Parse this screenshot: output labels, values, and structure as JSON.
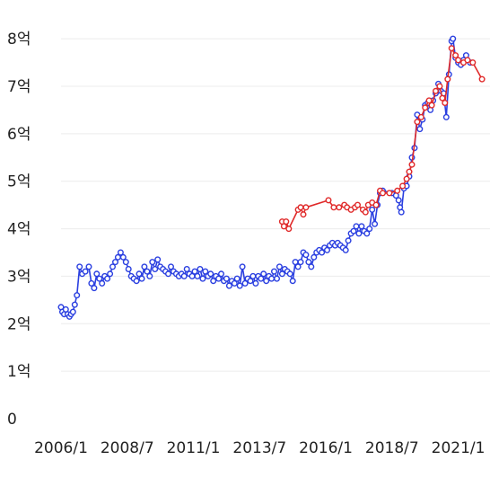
{
  "chart_data": {
    "type": "line",
    "y_ticks": [
      {
        "value": 0,
        "label": "0"
      },
      {
        "value": 1,
        "label": "1억"
      },
      {
        "value": 2,
        "label": "2억"
      },
      {
        "value": 3,
        "label": "3억"
      },
      {
        "value": 4,
        "label": "4억"
      },
      {
        "value": 5,
        "label": "5억"
      },
      {
        "value": 6,
        "label": "6억"
      },
      {
        "value": 7,
        "label": "7억"
      },
      {
        "value": 8,
        "label": "8억"
      }
    ],
    "x_ticks": [
      {
        "value": 2006.0,
        "label": "2006/1"
      },
      {
        "value": 2008.5,
        "label": "2008/7"
      },
      {
        "value": 2011.0,
        "label": "2011/1"
      },
      {
        "value": 2013.5,
        "label": "2013/7"
      },
      {
        "value": 2016.0,
        "label": "2016/1"
      },
      {
        "value": 2018.5,
        "label": "2018/7"
      },
      {
        "value": 2021.0,
        "label": "2021/1"
      }
    ],
    "xlim": [
      2006.0,
      2022.2
    ],
    "ylim": [
      0,
      8.4
    ],
    "grid": "horizontal",
    "series": [
      {
        "color": "#2a3fe0",
        "points": [
          [
            2006.0,
            2.35
          ],
          [
            2006.05,
            2.25
          ],
          [
            2006.12,
            2.2
          ],
          [
            2006.18,
            2.3
          ],
          [
            2006.25,
            2.2
          ],
          [
            2006.32,
            2.15
          ],
          [
            2006.38,
            2.2
          ],
          [
            2006.45,
            2.25
          ],
          [
            2006.52,
            2.4
          ],
          [
            2006.6,
            2.6
          ],
          [
            2006.7,
            3.2
          ],
          [
            2006.8,
            3.05
          ],
          [
            2006.92,
            3.1
          ],
          [
            2007.05,
            3.2
          ],
          [
            2007.15,
            2.85
          ],
          [
            2007.25,
            2.75
          ],
          [
            2007.35,
            3.05
          ],
          [
            2007.45,
            2.95
          ],
          [
            2007.55,
            2.85
          ],
          [
            2007.65,
            3.0
          ],
          [
            2007.75,
            2.95
          ],
          [
            2007.85,
            3.05
          ],
          [
            2007.95,
            3.2
          ],
          [
            2008.05,
            3.3
          ],
          [
            2008.15,
            3.4
          ],
          [
            2008.25,
            3.5
          ],
          [
            2008.35,
            3.4
          ],
          [
            2008.45,
            3.3
          ],
          [
            2008.55,
            3.15
          ],
          [
            2008.65,
            3.0
          ],
          [
            2008.75,
            2.95
          ],
          [
            2008.85,
            2.9
          ],
          [
            2008.95,
            3.05
          ],
          [
            2009.05,
            2.95
          ],
          [
            2009.15,
            3.2
          ],
          [
            2009.25,
            3.1
          ],
          [
            2009.35,
            3.0
          ],
          [
            2009.45,
            3.3
          ],
          [
            2009.55,
            3.15
          ],
          [
            2009.65,
            3.35
          ],
          [
            2009.75,
            3.2
          ],
          [
            2009.85,
            3.15
          ],
          [
            2009.95,
            3.1
          ],
          [
            2010.05,
            3.05
          ],
          [
            2010.15,
            3.2
          ],
          [
            2010.25,
            3.1
          ],
          [
            2010.35,
            3.05
          ],
          [
            2010.45,
            3.0
          ],
          [
            2010.55,
            3.05
          ],
          [
            2010.65,
            3.0
          ],
          [
            2010.75,
            3.15
          ],
          [
            2010.85,
            3.05
          ],
          [
            2010.95,
            3.0
          ],
          [
            2011.05,
            3.1
          ],
          [
            2011.15,
            3.0
          ],
          [
            2011.25,
            3.15
          ],
          [
            2011.35,
            2.95
          ],
          [
            2011.45,
            3.1
          ],
          [
            2011.55,
            3.0
          ],
          [
            2011.65,
            3.05
          ],
          [
            2011.75,
            2.9
          ],
          [
            2011.85,
            3.0
          ],
          [
            2011.95,
            2.95
          ],
          [
            2012.05,
            3.05
          ],
          [
            2012.15,
            2.9
          ],
          [
            2012.25,
            2.95
          ],
          [
            2012.35,
            2.8
          ],
          [
            2012.45,
            2.9
          ],
          [
            2012.55,
            2.85
          ],
          [
            2012.65,
            2.95
          ],
          [
            2012.75,
            2.8
          ],
          [
            2012.85,
            3.2
          ],
          [
            2012.95,
            2.85
          ],
          [
            2013.05,
            2.95
          ],
          [
            2013.15,
            2.9
          ],
          [
            2013.25,
            3.0
          ],
          [
            2013.35,
            2.85
          ],
          [
            2013.45,
            3.0
          ],
          [
            2013.55,
            2.95
          ],
          [
            2013.65,
            3.05
          ],
          [
            2013.75,
            2.9
          ],
          [
            2013.85,
            3.0
          ],
          [
            2013.95,
            2.95
          ],
          [
            2014.05,
            3.1
          ],
          [
            2014.15,
            2.95
          ],
          [
            2014.25,
            3.2
          ],
          [
            2014.35,
            3.05
          ],
          [
            2014.45,
            3.15
          ],
          [
            2014.55,
            3.1
          ],
          [
            2014.65,
            3.05
          ],
          [
            2014.75,
            2.9
          ],
          [
            2014.85,
            3.3
          ],
          [
            2014.95,
            3.2
          ],
          [
            2015.05,
            3.3
          ],
          [
            2015.15,
            3.5
          ],
          [
            2015.25,
            3.45
          ],
          [
            2015.35,
            3.3
          ],
          [
            2015.45,
            3.2
          ],
          [
            2015.55,
            3.4
          ],
          [
            2015.65,
            3.5
          ],
          [
            2015.75,
            3.55
          ],
          [
            2015.85,
            3.5
          ],
          [
            2015.95,
            3.6
          ],
          [
            2016.05,
            3.55
          ],
          [
            2016.15,
            3.65
          ],
          [
            2016.25,
            3.7
          ],
          [
            2016.35,
            3.65
          ],
          [
            2016.45,
            3.7
          ],
          [
            2016.55,
            3.65
          ],
          [
            2016.65,
            3.6
          ],
          [
            2016.75,
            3.55
          ],
          [
            2016.85,
            3.75
          ],
          [
            2016.95,
            3.9
          ],
          [
            2017.05,
            3.95
          ],
          [
            2017.15,
            4.05
          ],
          [
            2017.25,
            3.9
          ],
          [
            2017.35,
            4.05
          ],
          [
            2017.45,
            3.95
          ],
          [
            2017.55,
            3.9
          ],
          [
            2017.65,
            4.0
          ],
          [
            2017.75,
            4.4
          ],
          [
            2017.85,
            4.1
          ],
          [
            2017.95,
            4.5
          ],
          [
            2018.05,
            4.75
          ],
          [
            2018.15,
            4.8
          ],
          [
            2018.5,
            4.75
          ],
          [
            2018.65,
            4.7
          ],
          [
            2018.75,
            4.6
          ],
          [
            2018.8,
            4.45
          ],
          [
            2018.85,
            4.35
          ],
          [
            2018.95,
            4.85
          ],
          [
            2019.05,
            4.9
          ],
          [
            2019.15,
            5.1
          ],
          [
            2019.25,
            5.5
          ],
          [
            2019.35,
            5.7
          ],
          [
            2019.45,
            6.4
          ],
          [
            2019.55,
            6.1
          ],
          [
            2019.65,
            6.3
          ],
          [
            2019.75,
            6.6
          ],
          [
            2019.85,
            6.65
          ],
          [
            2019.95,
            6.5
          ],
          [
            2020.05,
            6.7
          ],
          [
            2020.15,
            6.85
          ],
          [
            2020.25,
            7.05
          ],
          [
            2020.35,
            6.9
          ],
          [
            2020.45,
            6.85
          ],
          [
            2020.55,
            6.35
          ],
          [
            2020.65,
            7.25
          ],
          [
            2020.75,
            7.95
          ],
          [
            2020.8,
            8.0
          ],
          [
            2020.9,
            7.6
          ],
          [
            2021.0,
            7.5
          ],
          [
            2021.1,
            7.45
          ],
          [
            2021.2,
            7.55
          ],
          [
            2021.3,
            7.65
          ],
          [
            2021.45,
            7.5
          ]
        ]
      },
      {
        "color": "#e02a2a",
        "points": [
          [
            2014.35,
            4.15
          ],
          [
            2014.42,
            4.05
          ],
          [
            2014.5,
            4.15
          ],
          [
            2014.6,
            4.0
          ],
          [
            2014.95,
            4.4
          ],
          [
            2015.05,
            4.45
          ],
          [
            2015.15,
            4.3
          ],
          [
            2015.25,
            4.45
          ],
          [
            2016.1,
            4.6
          ],
          [
            2016.3,
            4.45
          ],
          [
            2016.5,
            4.45
          ],
          [
            2016.7,
            4.5
          ],
          [
            2016.8,
            4.45
          ],
          [
            2016.95,
            4.4
          ],
          [
            2017.1,
            4.45
          ],
          [
            2017.2,
            4.5
          ],
          [
            2017.4,
            4.4
          ],
          [
            2017.5,
            4.35
          ],
          [
            2017.6,
            4.5
          ],
          [
            2017.75,
            4.55
          ],
          [
            2017.9,
            4.5
          ],
          [
            2018.05,
            4.8
          ],
          [
            2018.15,
            4.75
          ],
          [
            2018.4,
            4.75
          ],
          [
            2018.7,
            4.8
          ],
          [
            2018.9,
            4.9
          ],
          [
            2019.05,
            5.05
          ],
          [
            2019.15,
            5.2
          ],
          [
            2019.25,
            5.35
          ],
          [
            2019.45,
            6.25
          ],
          [
            2019.6,
            6.35
          ],
          [
            2019.75,
            6.55
          ],
          [
            2019.9,
            6.7
          ],
          [
            2020.0,
            6.6
          ],
          [
            2020.15,
            6.9
          ],
          [
            2020.3,
            7.0
          ],
          [
            2020.4,
            6.75
          ],
          [
            2020.5,
            6.65
          ],
          [
            2020.6,
            7.15
          ],
          [
            2020.75,
            7.8
          ],
          [
            2020.9,
            7.65
          ],
          [
            2021.0,
            7.55
          ],
          [
            2021.2,
            7.5
          ],
          [
            2021.35,
            7.55
          ],
          [
            2021.55,
            7.5
          ],
          [
            2021.9,
            7.15
          ]
        ]
      }
    ]
  }
}
